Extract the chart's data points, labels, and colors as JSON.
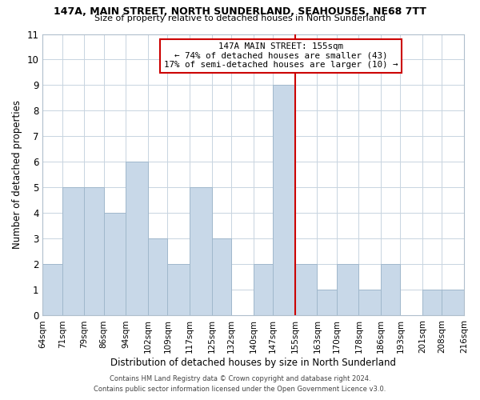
{
  "title1": "147A, MAIN STREET, NORTH SUNDERLAND, SEAHOUSES, NE68 7TT",
  "title2": "Size of property relative to detached houses in North Sunderland",
  "xlabel": "Distribution of detached houses by size in North Sunderland",
  "ylabel": "Number of detached properties",
  "bin_labels": [
    "64sqm",
    "71sqm",
    "79sqm",
    "86sqm",
    "94sqm",
    "102sqm",
    "109sqm",
    "117sqm",
    "125sqm",
    "132sqm",
    "140sqm",
    "147sqm",
    "155sqm",
    "163sqm",
    "170sqm",
    "178sqm",
    "186sqm",
    "193sqm",
    "201sqm",
    "208sqm",
    "216sqm"
  ],
  "bin_edges": [
    64,
    71,
    79,
    86,
    94,
    102,
    109,
    117,
    125,
    132,
    140,
    147,
    155,
    163,
    170,
    178,
    186,
    193,
    201,
    208,
    216
  ],
  "counts": [
    2,
    5,
    5,
    4,
    6,
    3,
    2,
    5,
    3,
    0,
    2,
    9,
    2,
    1,
    2,
    1,
    2,
    0,
    1,
    1,
    0
  ],
  "bar_color": "#c8d8e8",
  "bar_edgecolor": "#a0b8cc",
  "vline_x": 155,
  "vline_color": "#cc0000",
  "annotation_title": "147A MAIN STREET: 155sqm",
  "annotation_line1": "← 74% of detached houses are smaller (43)",
  "annotation_line2": "17% of semi-detached houses are larger (10) →",
  "annotation_box_edgecolor": "#cc0000",
  "ylim": [
    0,
    11
  ],
  "yticks": [
    0,
    1,
    2,
    3,
    4,
    5,
    6,
    7,
    8,
    9,
    10,
    11
  ],
  "footer1": "Contains HM Land Registry data © Crown copyright and database right 2024.",
  "footer2": "Contains public sector information licensed under the Open Government Licence v3.0."
}
